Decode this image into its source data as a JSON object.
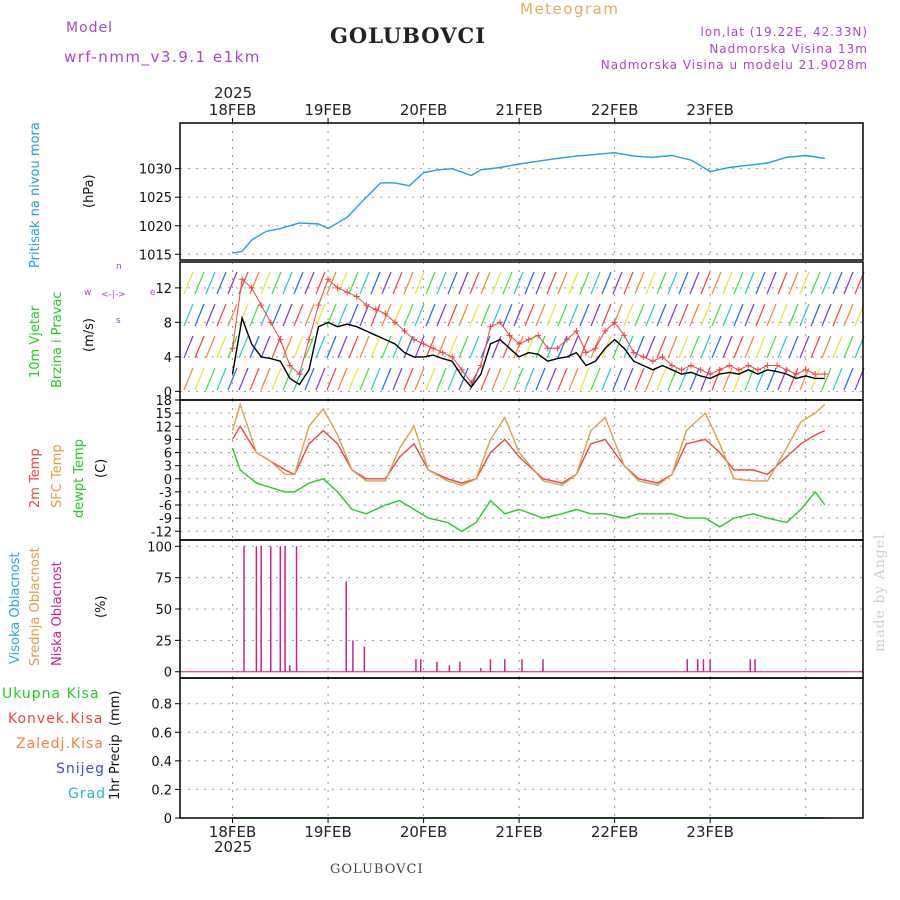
{
  "header": {
    "model_label": "Model",
    "model_name": "wrf-nmm_v3.9.1 e1km",
    "station": "GOLUBOVCI",
    "meteogram": "Meteogram",
    "lonlat": "lon,lat (19.22E, 42.33N)",
    "elevation": "Nadmorska Visina 13m",
    "model_elevation": "Nadmorska Visina u modelu 21.9028m",
    "year_top": "2025",
    "year_bottom": "2025",
    "footer_station": "GOLUBOVCI",
    "credit": "made by Angel"
  },
  "colors": {
    "pressure": "#1e9fe6",
    "wind_label": "#22cc22",
    "temp2m": "#ee4444",
    "sfc_temp": "#e0a040",
    "dewpt": "#22cc22",
    "low_cloud": "#cc2288",
    "high_cloud": "#22aadd",
    "mid_cloud": "#e0a040",
    "compass": "#aa44cc"
  },
  "compass": {
    "w": "w",
    "e": "e",
    "n": "n",
    "s": "s"
  },
  "date_ticks": [
    "18FEB",
    "19FEB",
    "20FEB",
    "21FEB",
    "22FEB",
    "23FEB"
  ],
  "chart_data": [
    {
      "type": "line",
      "panel": "pressure",
      "ylabel": "Pritisak na nivou mora",
      "unit": "(hPa)",
      "ylim": [
        1014,
        1038
      ],
      "yticks": [
        1015,
        1020,
        1025,
        1030
      ],
      "x_days": [
        0,
        0.1,
        0.2,
        0.35,
        0.5,
        0.7,
        0.9,
        1.0,
        1.2,
        1.4,
        1.55,
        1.7,
        1.85,
        2.0,
        2.15,
        2.3,
        2.5,
        2.6,
        2.8,
        3.0,
        3.2,
        3.4,
        3.6,
        3.8,
        4.0,
        4.2,
        4.4,
        4.6,
        4.8,
        5.0,
        5.2,
        5.4,
        5.6,
        5.8,
        6.0,
        6.2
      ],
      "series": [
        {
          "values": [
            1015.2,
            1015.5,
            1017.5,
            1019,
            1019.5,
            1020.5,
            1020.3,
            1019.5,
            1021.5,
            1025,
            1027.5,
            1027.5,
            1027,
            1029.3,
            1029.8,
            1030,
            1028.8,
            1029.8,
            1030.2,
            1030.8,
            1031.3,
            1031.8,
            1032.2,
            1032.5,
            1032.8,
            1032.2,
            1032.0,
            1032.3,
            1031.5,
            1029.5,
            1030.2,
            1030.6,
            1031.0,
            1032.0,
            1032.3,
            1031.8
          ]
        }
      ]
    },
    {
      "type": "line",
      "panel": "wind",
      "ylabel": "10m Vjetar Brzina i Pravac",
      "unit": "(m/s)",
      "ylim": [
        -1,
        15
      ],
      "yticks": [
        0,
        4,
        8,
        12
      ],
      "x_days": [
        0,
        0.1,
        0.2,
        0.3,
        0.4,
        0.5,
        0.6,
        0.7,
        0.8,
        0.9,
        1.0,
        1.1,
        1.2,
        1.3,
        1.4,
        1.5,
        1.6,
        1.7,
        1.8,
        1.9,
        2.0,
        2.1,
        2.2,
        2.3,
        2.4,
        2.5,
        2.6,
        2.7,
        2.8,
        2.9,
        3.0,
        3.1,
        3.2,
        3.3,
        3.4,
        3.5,
        3.6,
        3.7,
        3.8,
        3.9,
        4.0,
        4.1,
        4.2,
        4.3,
        4.4,
        4.5,
        4.6,
        4.7,
        4.8,
        4.9,
        5.0,
        5.1,
        5.2,
        5.3,
        5.4,
        5.5,
        5.6,
        5.7,
        5.8,
        5.9,
        6.0,
        6.1,
        6.2
      ],
      "series": [
        {
          "name": "wind speed",
          "values": [
            2,
            8.5,
            5.5,
            4,
            3.8,
            3.5,
            1.5,
            0.8,
            2.5,
            7.5,
            8,
            7.5,
            7.8,
            7.5,
            7,
            6.5,
            6,
            5.5,
            4.5,
            4,
            4,
            4.2,
            3.8,
            3.5,
            1.8,
            0.5,
            2,
            5.5,
            6,
            5,
            4,
            4.5,
            4.3,
            3.5,
            3.8,
            4,
            4.5,
            3,
            3.5,
            5,
            6,
            5,
            3.5,
            3,
            2.5,
            3,
            2.5,
            2,
            2.2,
            1.8,
            1.5,
            2,
            2.2,
            2,
            2.5,
            2,
            2.5,
            2.3,
            2,
            1.5,
            1.8,
            1.5,
            1.5
          ]
        },
        {
          "name": "wind gust",
          "values": [
            5,
            13,
            12,
            10,
            8,
            6,
            3,
            2,
            6,
            10,
            13,
            12,
            11.5,
            11,
            10,
            9.5,
            9,
            8,
            7,
            6,
            5.5,
            5,
            4.5,
            4,
            2.5,
            1,
            3,
            7.5,
            8,
            6.5,
            5.5,
            6,
            6.5,
            5,
            5,
            6,
            7,
            4.5,
            5,
            7,
            8,
            6.5,
            4.5,
            4,
            3.5,
            4,
            3,
            2.5,
            3,
            2.5,
            2,
            2.5,
            3,
            2.5,
            3,
            2.5,
            3,
            3,
            2.5,
            2,
            2.5,
            2,
            2
          ]
        }
      ]
    },
    {
      "type": "line",
      "panel": "temperature",
      "ylabel": "2m Temp / SFC Temp / dewpt Temp",
      "unit": "(C)",
      "ylim": [
        -14,
        18
      ],
      "yticks": [
        -12,
        -9,
        -6,
        -3,
        0,
        3,
        6,
        9,
        12,
        15,
        18
      ],
      "x_days": [
        0,
        0.08,
        0.25,
        0.4,
        0.55,
        0.65,
        0.8,
        0.95,
        1.1,
        1.25,
        1.4,
        1.6,
        1.75,
        1.9,
        2.05,
        2.25,
        2.4,
        2.55,
        2.7,
        2.85,
        3.0,
        3.25,
        3.45,
        3.6,
        3.75,
        3.9,
        4.1,
        4.25,
        4.45,
        4.6,
        4.75,
        4.95,
        5.1,
        5.25,
        5.45,
        5.6,
        5.8,
        5.95,
        6.1,
        6.2
      ],
      "series": [
        {
          "name": "2m Temp",
          "values": [
            9,
            12,
            6,
            4,
            2,
            1,
            8,
            11,
            8,
            2,
            0,
            0,
            5,
            8,
            2,
            0,
            -1,
            0,
            6,
            9,
            5,
            0,
            -1,
            1,
            8,
            9,
            3,
            0,
            -1,
            1,
            8,
            9,
            6,
            2,
            2,
            1,
            5,
            8,
            10,
            11
          ]
        },
        {
          "name": "SFC Temp",
          "values": [
            11,
            17,
            6,
            4,
            1,
            1,
            12,
            16,
            10,
            2,
            -0.5,
            -0.5,
            7,
            12,
            2,
            -0.5,
            -1.5,
            0,
            9,
            14,
            6,
            -0.5,
            -1.5,
            1,
            11,
            14,
            3,
            -0.5,
            -1.5,
            1,
            11,
            15,
            8,
            0,
            -0.5,
            -0.5,
            7,
            13,
            15,
            17
          ]
        },
        {
          "name": "dewpt Temp",
          "values": [
            7,
            2,
            -1,
            -2,
            -3,
            -3,
            -1,
            0,
            -3,
            -7,
            -8,
            -6,
            -5,
            -7,
            -9,
            -10,
            -12,
            -10,
            -5,
            -8,
            -7,
            -9,
            -8,
            -7,
            -8,
            -8,
            -9,
            -8,
            -8,
            -8,
            -9,
            -9,
            -11,
            -9,
            -8,
            -9,
            -10,
            -7,
            -3,
            -6
          ]
        }
      ]
    },
    {
      "type": "bar",
      "panel": "cloud",
      "ylabel": "Visoka Oblacnost / Srednja Oblacnost / Niska Oblacnost",
      "unit": "(%)",
      "ylim": [
        -5,
        105
      ],
      "yticks": [
        0,
        25,
        50,
        75,
        100
      ],
      "x_days": [
        0.12,
        0.25,
        0.3,
        0.4,
        0.5,
        0.55,
        0.6,
        0.67,
        1.19,
        1.26,
        1.38,
        1.92,
        1.97,
        2.14,
        2.27,
        2.38,
        2.6,
        2.7,
        2.85,
        3.03,
        3.25,
        4.76,
        4.87,
        4.93,
        5.0,
        5.42,
        5.47
      ],
      "series": [
        {
          "name": "Niska Oblacnost",
          "values": [
            100,
            100,
            100,
            100,
            100,
            100,
            5,
            100,
            72,
            25,
            20,
            10,
            10,
            8,
            5,
            8,
            3,
            10,
            10,
            10,
            10,
            10,
            10,
            10,
            10,
            10,
            10
          ]
        }
      ]
    },
    {
      "type": "line",
      "panel": "precipitation",
      "ylabel": "1hr Precip",
      "unit": "(mm)",
      "ylim": [
        0,
        0.98
      ],
      "yticks": [
        0,
        0.2,
        0.4,
        0.6,
        0.8
      ],
      "legend": [
        "Ukupna Kisa",
        "Konvek.Kisa",
        "Zaledj.Kisa",
        "Snijeg",
        "Grad"
      ],
      "x_days": [
        0,
        6.2
      ],
      "series": [
        {
          "name": "Ukupna Kisa",
          "values": [
            0,
            0
          ]
        }
      ]
    }
  ]
}
